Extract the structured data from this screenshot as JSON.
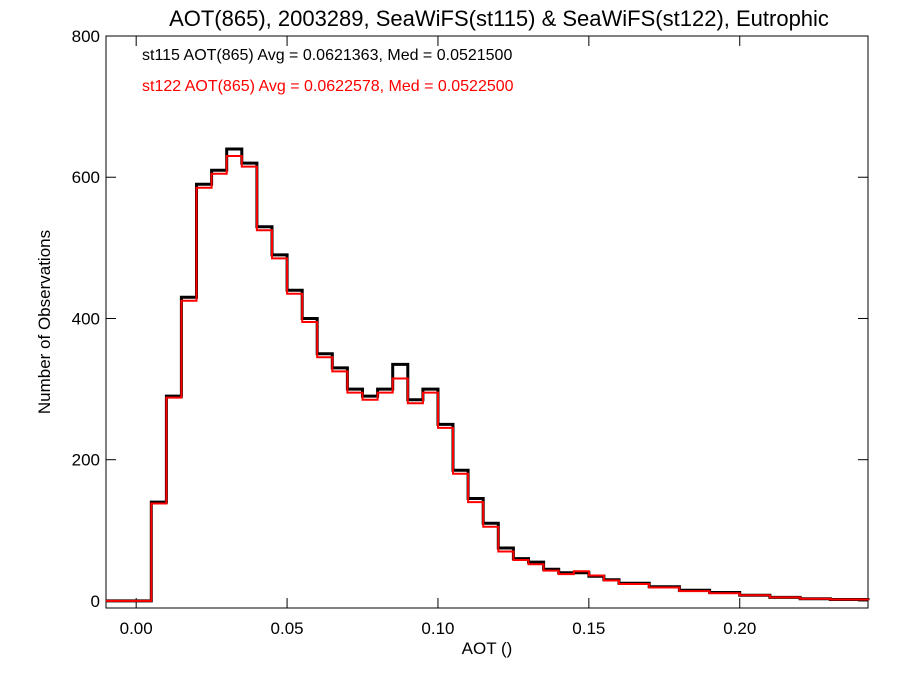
{
  "chart_data": {
    "type": "line",
    "title": "AOT(865), 2003289, SeaWiFS(st115) & SeaWiFS(st122), Eutrophic",
    "xlabel": "AOT ()",
    "ylabel": "Number of Observations",
    "xlim": [
      -0.01,
      0.2425
    ],
    "ylim": [
      -10,
      800
    ],
    "xticks": [
      0.0,
      0.05,
      0.1,
      0.15,
      0.2
    ],
    "xtick_labels": [
      "0.00",
      "0.05",
      "0.10",
      "0.15",
      "0.20"
    ],
    "yticks": [
      0,
      200,
      400,
      600,
      800
    ],
    "ytick_labels": [
      "0",
      "200",
      "400",
      "600",
      "800"
    ],
    "grid": false,
    "stats": [
      {
        "text": "st115 AOT(865) Avg = 0.0621363, Med = 0.0521500",
        "color": "#000000"
      },
      {
        "text": "st122 AOT(865) Avg = 0.0622578, Med = 0.0522500",
        "color": "#ff0000"
      }
    ],
    "x": [
      -0.01,
      0.0,
      0.005,
      0.01,
      0.015,
      0.02,
      0.025,
      0.03,
      0.035,
      0.04,
      0.045,
      0.05,
      0.055,
      0.06,
      0.065,
      0.07,
      0.075,
      0.08,
      0.085,
      0.09,
      0.095,
      0.1,
      0.105,
      0.11,
      0.115,
      0.12,
      0.125,
      0.13,
      0.135,
      0.14,
      0.145,
      0.15,
      0.155,
      0.16,
      0.17,
      0.18,
      0.19,
      0.2,
      0.21,
      0.22,
      0.23,
      0.2425
    ],
    "series": [
      {
        "name": "st115",
        "color": "#000000",
        "values": [
          0,
          0,
          140,
          290,
          430,
          590,
          610,
          640,
          620,
          530,
          490,
          440,
          400,
          350,
          330,
          300,
          290,
          300,
          335,
          285,
          300,
          250,
          185,
          145,
          110,
          75,
          60,
          55,
          45,
          40,
          40,
          35,
          30,
          25,
          20,
          15,
          12,
          8,
          5,
          3,
          2,
          1
        ]
      },
      {
        "name": "st122",
        "color": "#ff0000",
        "values": [
          0,
          0,
          138,
          288,
          425,
          585,
          605,
          630,
          615,
          525,
          485,
          435,
          395,
          345,
          325,
          295,
          285,
          295,
          315,
          280,
          295,
          245,
          180,
          140,
          105,
          70,
          58,
          52,
          43,
          38,
          42,
          36,
          29,
          24,
          19,
          14,
          11,
          8,
          5,
          3,
          2,
          1
        ]
      }
    ]
  }
}
